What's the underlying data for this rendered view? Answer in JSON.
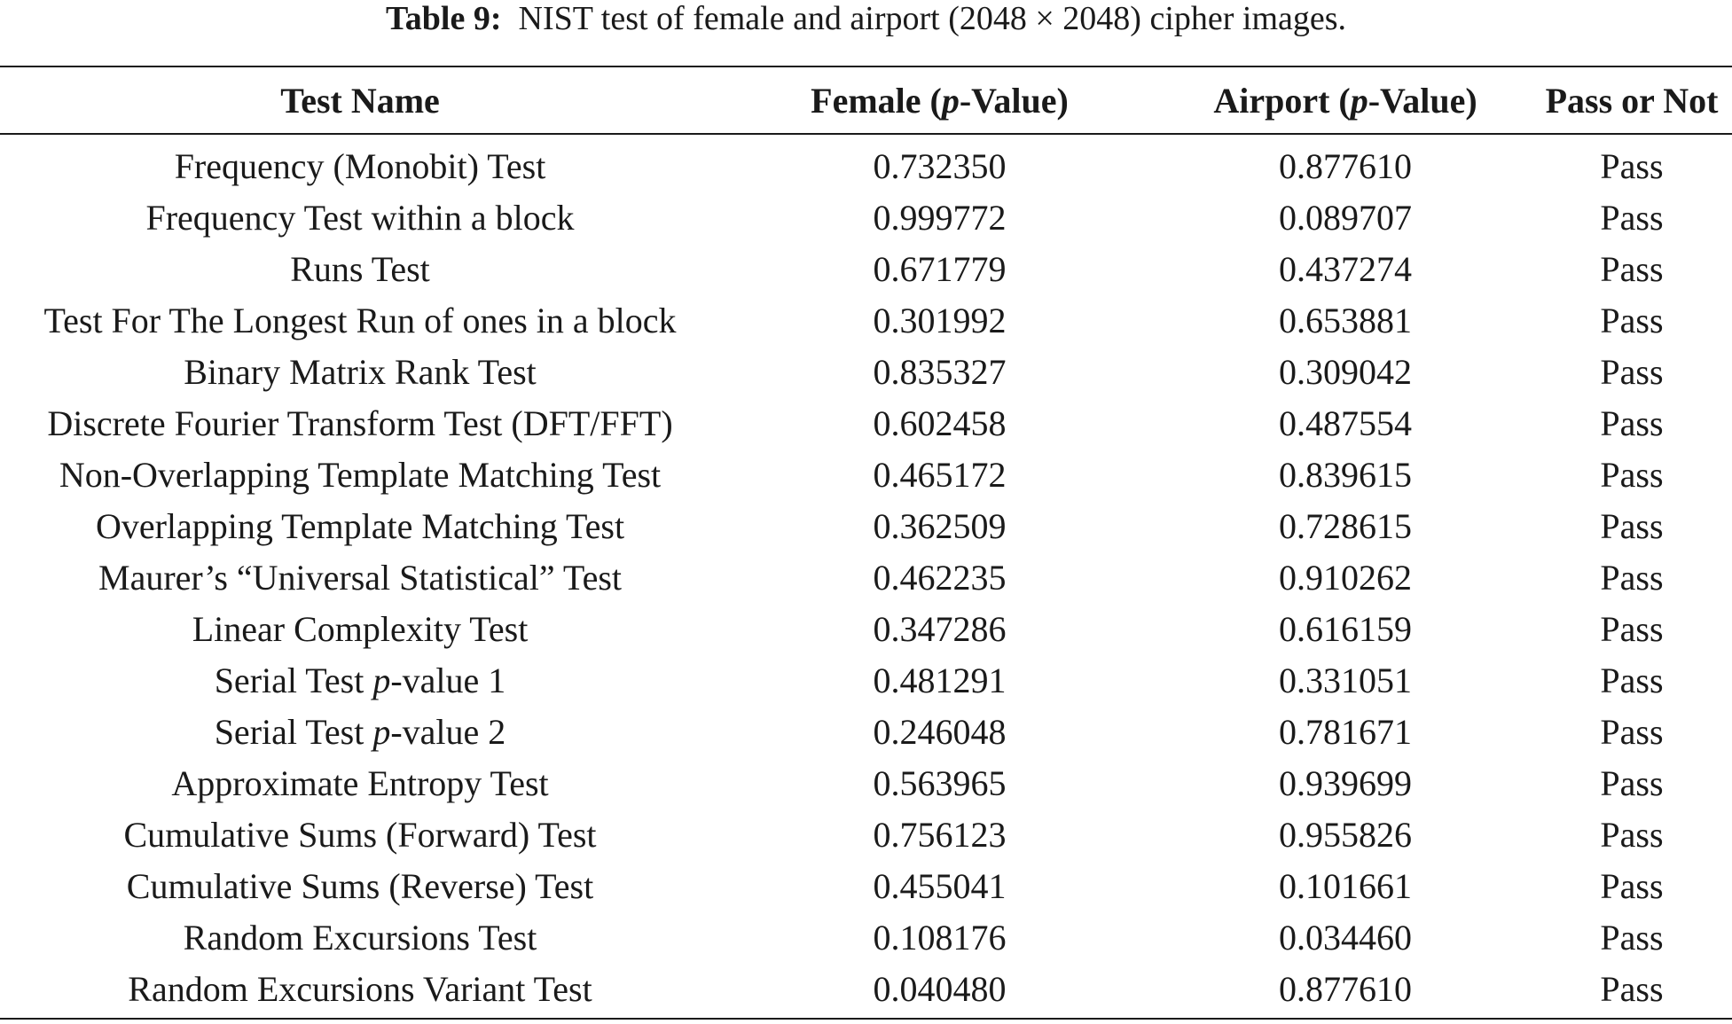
{
  "caption": {
    "label": "Table 9:",
    "text": "NIST test of female and airport (2048 × 2048) cipher images."
  },
  "table": {
    "headers": [
      {
        "pre": "Test Name",
        "ital": "",
        "post": ""
      },
      {
        "pre": "Female (",
        "ital": "p",
        "post": "-Value)"
      },
      {
        "pre": "Airport (",
        "ital": "p",
        "post": "-Value)"
      },
      {
        "pre": "Pass or Not",
        "ital": "",
        "post": ""
      }
    ],
    "rows": [
      {
        "name_pre": "Frequency (Monobit) Test",
        "name_ital": "",
        "name_post": "",
        "female": "0.732350",
        "airport": "0.877610",
        "result": "Pass"
      },
      {
        "name_pre": "Frequency Test within a block",
        "name_ital": "",
        "name_post": "",
        "female": "0.999772",
        "airport": "0.089707",
        "result": "Pass"
      },
      {
        "name_pre": "Runs Test",
        "name_ital": "",
        "name_post": "",
        "female": "0.671779",
        "airport": "0.437274",
        "result": "Pass"
      },
      {
        "name_pre": "Test For The Longest Run of ones in a block",
        "name_ital": "",
        "name_post": "",
        "female": "0.301992",
        "airport": "0.653881",
        "result": "Pass"
      },
      {
        "name_pre": "Binary Matrix Rank Test",
        "name_ital": "",
        "name_post": "",
        "female": "0.835327",
        "airport": "0.309042",
        "result": "Pass"
      },
      {
        "name_pre": "Discrete Fourier Transform Test (DFT/FFT)",
        "name_ital": "",
        "name_post": "",
        "female": "0.602458",
        "airport": "0.487554",
        "result": "Pass"
      },
      {
        "name_pre": "Non-Overlapping Template Matching Test",
        "name_ital": "",
        "name_post": "",
        "female": "0.465172",
        "airport": "0.839615",
        "result": "Pass"
      },
      {
        "name_pre": "Overlapping Template Matching Test",
        "name_ital": "",
        "name_post": "",
        "female": "0.362509",
        "airport": "0.728615",
        "result": "Pass"
      },
      {
        "name_pre": "Maurer’s “Universal Statistical” Test",
        "name_ital": "",
        "name_post": "",
        "female": "0.462235",
        "airport": "0.910262",
        "result": "Pass"
      },
      {
        "name_pre": "Linear Complexity Test",
        "name_ital": "",
        "name_post": "",
        "female": "0.347286",
        "airport": "0.616159",
        "result": "Pass"
      },
      {
        "name_pre": "Serial Test ",
        "name_ital": "p",
        "name_post": "-value 1",
        "female": "0.481291",
        "airport": "0.331051",
        "result": "Pass"
      },
      {
        "name_pre": "Serial Test ",
        "name_ital": "p",
        "name_post": "-value 2",
        "female": "0.246048",
        "airport": "0.781671",
        "result": "Pass"
      },
      {
        "name_pre": "Approximate Entropy Test",
        "name_ital": "",
        "name_post": "",
        "female": "0.563965",
        "airport": "0.939699",
        "result": "Pass"
      },
      {
        "name_pre": "Cumulative Sums (Forward) Test",
        "name_ital": "",
        "name_post": "",
        "female": "0.756123",
        "airport": "0.955826",
        "result": "Pass"
      },
      {
        "name_pre": "Cumulative Sums (Reverse) Test",
        "name_ital": "",
        "name_post": "",
        "female": "0.455041",
        "airport": "0.101661",
        "result": "Pass"
      },
      {
        "name_pre": "Random Excursions Test",
        "name_ital": "",
        "name_post": "",
        "female": "0.108176",
        "airport": "0.034460",
        "result": "Pass"
      },
      {
        "name_pre": "Random Excursions Variant Test",
        "name_ital": "",
        "name_post": "",
        "female": "0.040480",
        "airport": "0.877610",
        "result": "Pass"
      }
    ]
  }
}
